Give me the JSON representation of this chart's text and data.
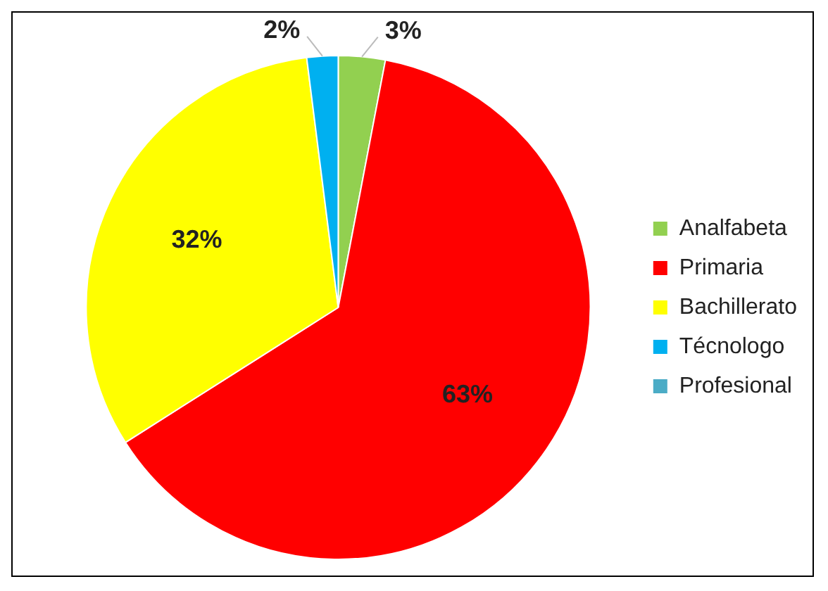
{
  "chart_data": {
    "type": "pie",
    "categories": [
      "Analfabeta",
      "Primaria",
      "Bachillerato",
      "Técnologo",
      "Profesional"
    ],
    "values": [
      3,
      63,
      32,
      2,
      0
    ],
    "colors": [
      "#92d050",
      "#ff0000",
      "#ffff00",
      "#00b0f0",
      "#4bacc6"
    ],
    "value_labels": [
      "3%",
      "63%",
      "32%",
      "2%",
      null
    ],
    "legend": "right"
  }
}
